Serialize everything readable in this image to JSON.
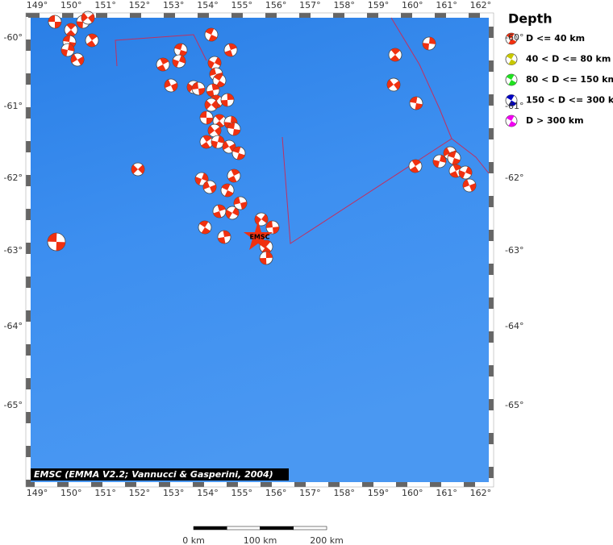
{
  "map": {
    "lon_labels": [
      "149°",
      "150°",
      "151°",
      "152°",
      "153°",
      "154°",
      "155°",
      "156°",
      "157°",
      "158°",
      "159°",
      "160°",
      "161°",
      "162°"
    ],
    "lat_labels": [
      "-60°",
      "-61°",
      "-62°",
      "-63°",
      "-64°",
      "-65°"
    ]
  },
  "legend": {
    "title": "Depth",
    "items": [
      "D <= 40 km",
      "40 < D <= 80 km",
      "80 < D <= 150 km",
      "150 < D <= 300 km",
      "D > 300 km"
    ]
  },
  "marker_label": "EMSC",
  "credit": "EMSC (EMMA V2.2; Vannucci & Gasperini, 2004)",
  "scale_bar": {
    "labels": [
      "0 km",
      "100 km",
      "200 km"
    ]
  }
}
